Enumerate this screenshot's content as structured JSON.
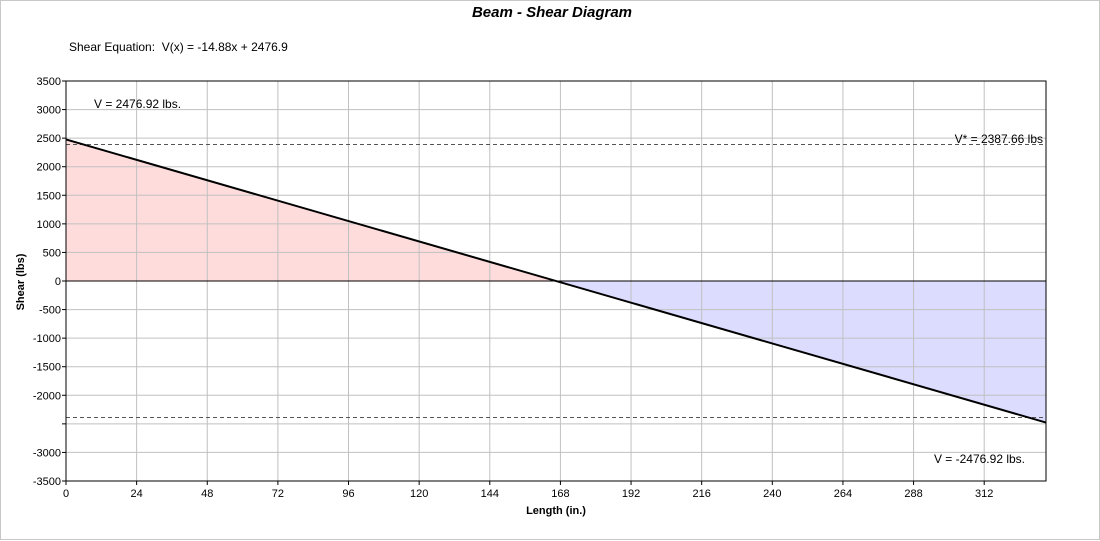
{
  "chart_data": {
    "type": "area",
    "title": "Beam - Shear Diagram",
    "equation": "Shear Equation:  V(x) = -14.88x + 2476.9",
    "xlabel": "Length (in.)",
    "ylabel": "Shear (lbs)",
    "xlim": [
      0,
      333
    ],
    "ylim": [
      -3500,
      3500
    ],
    "x_ticks": [
      "0",
      "24",
      "48",
      "72",
      "96",
      "120",
      "144",
      "168",
      "192",
      "216",
      "240",
      "264",
      "288",
      "312"
    ],
    "y_ticks": [
      "3500",
      "3000",
      "2500",
      "2000",
      "1500",
      "1000",
      "500",
      "0",
      "-500",
      "-1000",
      "-1500",
      "-2000",
      "",
      "-3000",
      "-3500"
    ],
    "y_tick_values": [
      3500,
      3000,
      2500,
      2000,
      1500,
      1000,
      500,
      0,
      -500,
      -1000,
      -1500,
      -2000,
      -2500,
      -3000,
      -3500
    ],
    "series": [
      {
        "x": [
          0,
          333
        ],
        "y": [
          2476.92,
          -2476.92
        ]
      }
    ],
    "reference_lines": [
      2387.66,
      -2387.66
    ],
    "annotations": {
      "v_start": "V = 2476.92 lbs.",
      "v_allow": "V* = 2387.66 lbs",
      "v_end": "V = -2476.92 lbs."
    },
    "grid": true,
    "colors": {
      "positive_fill": "#ffdcdc",
      "negative_fill": "#dcdcff",
      "line": "#000000",
      "grid": "#c0c0c0",
      "title": "#808080"
    }
  }
}
